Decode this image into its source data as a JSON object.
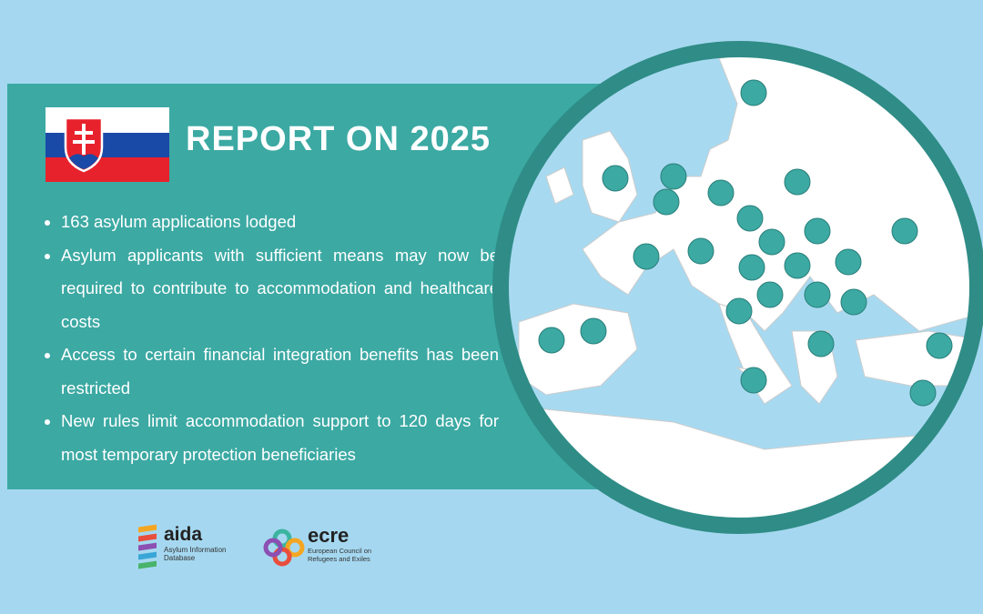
{
  "header": {
    "title": "REPORT ON 2025"
  },
  "bullets": [
    "163 asylum applications lodged",
    "Asylum applicants with sufficient means may now be required to contribute to accommodation and healthcare costs",
    "Access to certain financial integration benefits has been restricted",
    "New rules limit accommodation support to 120 days for most temporary protection beneficiaries"
  ],
  "logos": {
    "aida": {
      "name": "aida",
      "subtitle": "Asylum Information Database"
    },
    "ecre": {
      "name": "ecre",
      "subtitle": "European Council on Refugees and Exiles"
    }
  }
}
